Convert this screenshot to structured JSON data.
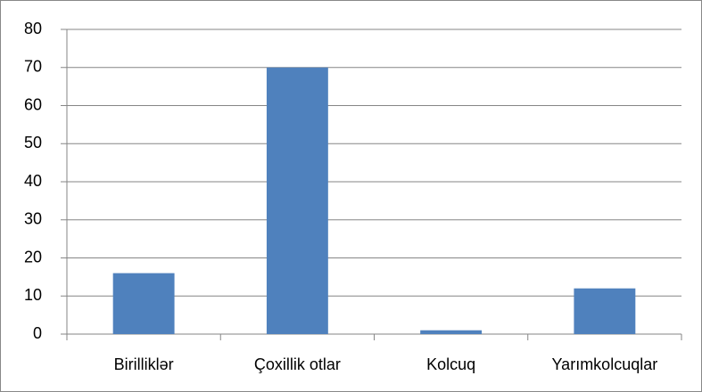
{
  "chart_data": {
    "type": "bar",
    "categories": [
      "Birilliklər",
      "Çoxillik otlar",
      "Kolcuq",
      "Yarımkolcuqlar"
    ],
    "values": [
      16,
      70,
      1,
      12
    ],
    "color": "#4f81bd",
    "ylim": [
      0,
      80
    ],
    "yticks": [
      0,
      10,
      20,
      30,
      40,
      50,
      60,
      70,
      80
    ],
    "grid": true
  }
}
